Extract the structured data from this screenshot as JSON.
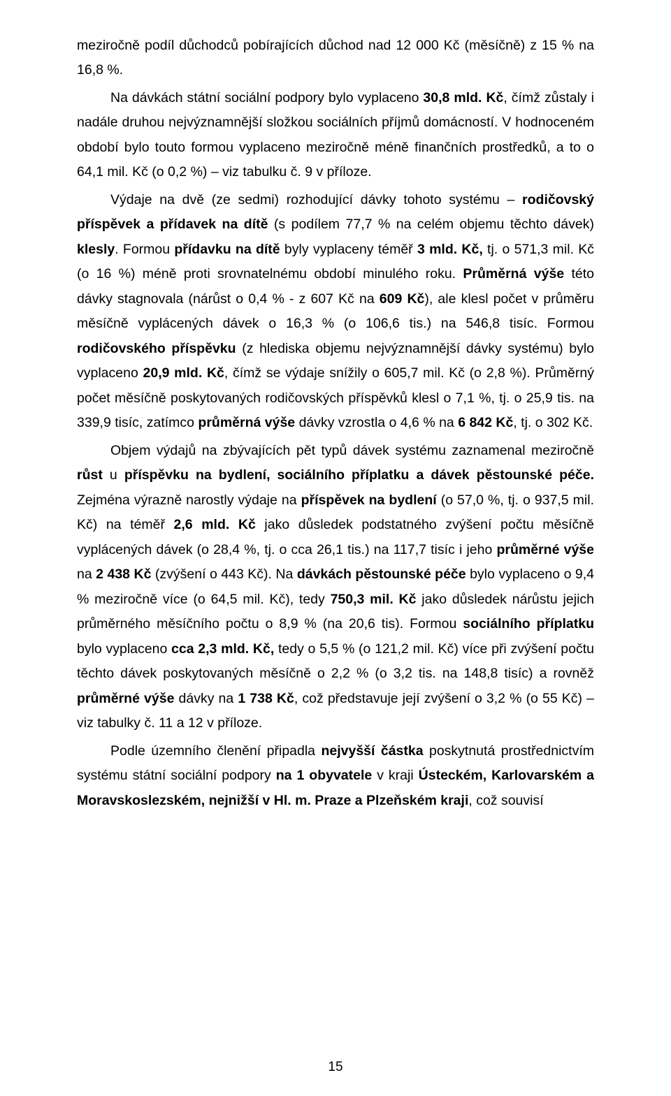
{
  "paragraphs": {
    "p1_a": "meziročně podíl důchodců pobírajících důchod nad 12 000 Kč (měsíčně) z 15 % na 16,8 %.",
    "p2_a": "Na dávkách státní sociální podpory bylo vyplaceno ",
    "p2_b": "30,8 mld. Kč",
    "p2_c": ", čímž zůstaly i nadále druhou nejvýznamnější složkou sociálních příjmů domácností. V hodnoceném období bylo touto formou vyplaceno meziročně méně finančních prostředků, a to o 64,1 mil. Kč (o 0,2 %) – viz tabulku č. 9 v příloze.",
    "p3_a": "Výdaje na dvě (ze sedmi) rozhodující dávky tohoto systému – ",
    "p3_b": "rodičovský příspěvek a přídavek na dítě",
    "p3_c": " (s podílem 77,7 % na celém objemu těchto dávek) ",
    "p3_d": "klesly",
    "p3_e": ". Formou ",
    "p3_f": "přídavku na dítě",
    "p3_g": " byly vyplaceny téměř ",
    "p3_h": "3 mld. Kč,",
    "p3_i": " tj. o 571,3 mil. Kč (o 16 %) méně proti srovnatelnému období minulého roku. ",
    "p3_j": "Průměrná výše",
    "p3_k": " této dávky stagnovala (nárůst o 0,4 % - z 607 Kč na ",
    "p3_l": "609 Kč",
    "p3_m": "), ale klesl počet v průměru měsíčně vyplácených dávek o 16,3 % (o 106,6 tis.) na 546,8 tisíc. Formou ",
    "p3_n": "rodičovského příspěvku",
    "p3_o": " (z hlediska objemu nejvýznamnější dávky systému) bylo vyplaceno ",
    "p3_p": "20,9 mld. Kč",
    "p3_q": ", čímž se výdaje snížily o 605,7 mil. Kč (o 2,8 %). Průměrný počet měsíčně poskytovaných rodičovských příspěvků klesl o 7,1 %, tj. o 25,9 tis. na 339,9 tisíc, zatímco ",
    "p3_r": "průměrná výše",
    "p3_s": " dávky vzrostla o 4,6 % na ",
    "p3_t": "6 842 Kč",
    "p3_u": ", tj. o 302 Kč.",
    "p4_a": "Objem výdajů na zbývajících pět typů dávek systému zaznamenal meziročně ",
    "p4_b": "růst",
    "p4_c": " u ",
    "p4_d": "příspěvku na bydlení, sociálního příplatku a dávek pěstounské péče.",
    "p4_e": " Zejména výrazně narostly výdaje na ",
    "p4_f": "příspěvek na bydlení",
    "p4_g": " (o 57,0 %, tj. o 937,5 mil. Kč) na téměř ",
    "p4_h": "2,6 mld. Kč",
    "p4_i": "  jako důsledek podstatného zvýšení počtu měsíčně vyplácených dávek (o 28,4 %, tj. o cca 26,1 tis.) na 117,7 tisíc i jeho ",
    "p4_j": "průměrné výše",
    "p4_k": " na ",
    "p4_l": "2 438 Kč",
    "p4_m": " (zvýšení o 443 Kč). Na ",
    "p4_n": "dávkách pěstounské péče",
    "p4_o": " bylo vyplaceno o 9,4 % meziročně více (o 64,5 mil. Kč), tedy ",
    "p4_p": "750,3 mil. Kč",
    "p4_q": " jako důsledek nárůstu jejich průměrného měsíčního počtu o 8,9 % (na 20,6 tis). Formou ",
    "p4_r": "sociálního příplatku",
    "p4_s": " bylo vyplaceno ",
    "p4_t": "cca 2,3 mld. Kč,",
    "p4_u": " tedy o 5,5 % (o 121,2 mil. Kč) více při zvýšení počtu těchto dávek poskytovaných měsíčně o 2,2 % (o 3,2 tis. na 148,8 tisíc) a rovněž ",
    "p4_v": "průměrné výše",
    "p4_w": " dávky na ",
    "p4_x": "1 738 Kč",
    "p4_y": ", což představuje její zvýšení o 3,2 % (o 55 Kč) – viz tabulky č. 11 a 12 v příloze.",
    "p5_a": "Podle územního členění připadla ",
    "p5_b": "nejvyšší částka",
    "p5_c": " poskytnutá prostřednictvím systému státní sociální podpory ",
    "p5_d": "na 1 obyvatele",
    "p5_e": " v kraji ",
    "p5_f": "Ústeckém, Karlovarském a Moravskoslezském, nejnižší v Hl. m. Praze a Plzeňském kraji",
    "p5_g": ", což souvisí"
  },
  "page_number": "15"
}
